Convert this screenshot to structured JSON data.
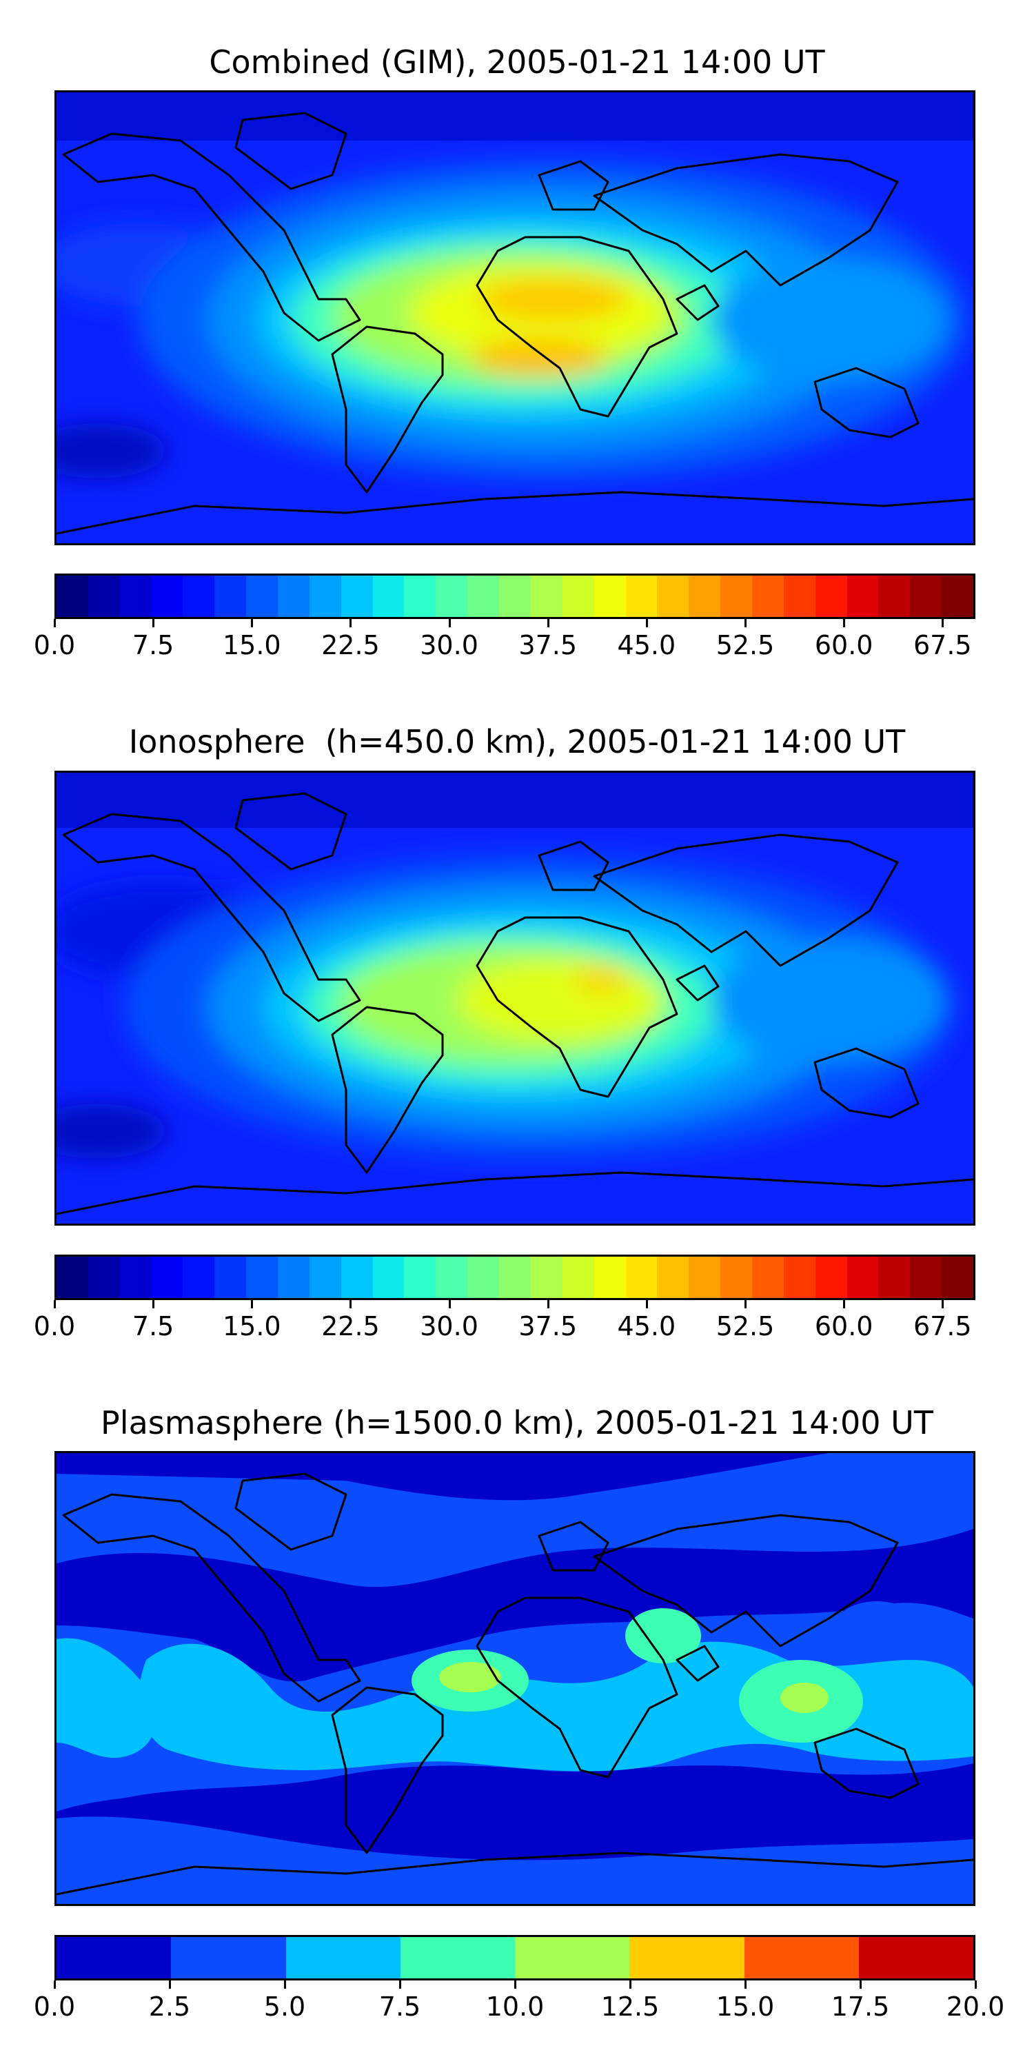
{
  "panels": [
    {
      "title": "Combined (GIM), 2005-01-21 14:00 UT",
      "colorbar": {
        "colors": [
          "#00007f",
          "#0000a8",
          "#0000d1",
          "#0000fa",
          "#0012ff",
          "#0036ff",
          "#005aff",
          "#007eff",
          "#00a2ff",
          "#00c6ff",
          "#0ceaec",
          "#2cffca",
          "#4dffaa",
          "#6dff8a",
          "#8dff6a",
          "#adff4a",
          "#ceff29",
          "#eeff09",
          "#ffe200",
          "#ffc000",
          "#ff9f00",
          "#ff7d00",
          "#ff5c00",
          "#ff3a00",
          "#ff1900",
          "#e10000",
          "#bd0000",
          "#990000",
          "#7f0000"
        ],
        "min": 0.0,
        "max": 70.0,
        "ticks": [
          "0.0",
          "7.5",
          "15.0",
          "22.5",
          "30.0",
          "37.5",
          "45.0",
          "52.5",
          "60.0",
          "67.5"
        ],
        "tick_values": [
          0.0,
          7.5,
          15.0,
          22.5,
          30.0,
          37.5,
          45.0,
          52.5,
          60.0,
          67.5
        ]
      }
    },
    {
      "title": "Ionosphere  (h=450.0 km), 2005-01-21 14:00 UT",
      "colorbar": {
        "colors": [
          "#00007f",
          "#0000a8",
          "#0000d1",
          "#0000fa",
          "#0012ff",
          "#0036ff",
          "#005aff",
          "#007eff",
          "#00a2ff",
          "#00c6ff",
          "#0ceaec",
          "#2cffca",
          "#4dffaa",
          "#6dff8a",
          "#8dff6a",
          "#adff4a",
          "#ceff29",
          "#eeff09",
          "#ffe200",
          "#ffc000",
          "#ff9f00",
          "#ff7d00",
          "#ff5c00",
          "#ff3a00",
          "#ff1900",
          "#e10000",
          "#bd0000",
          "#990000",
          "#7f0000"
        ],
        "min": 0.0,
        "max": 70.0,
        "ticks": [
          "0.0",
          "7.5",
          "15.0",
          "22.5",
          "30.0",
          "37.5",
          "45.0",
          "52.5",
          "60.0",
          "67.5"
        ],
        "tick_values": [
          0.0,
          7.5,
          15.0,
          22.5,
          30.0,
          37.5,
          45.0,
          52.5,
          60.0,
          67.5
        ]
      }
    },
    {
      "title": "Plasmasphere (h=1500.0 km), 2005-01-21 14:00 UT",
      "colorbar": {
        "colors": [
          "#0000c8",
          "#0c4cff",
          "#00c0ff",
          "#3cffb4",
          "#a6ff50",
          "#ffcc00",
          "#ff5500",
          "#c80000"
        ],
        "min": 0.0,
        "max": 20.0,
        "ticks": [
          "0.0",
          "2.5",
          "5.0",
          "7.5",
          "10.0",
          "12.5",
          "15.0",
          "17.5",
          "20.0"
        ],
        "tick_values": [
          0.0,
          2.5,
          5.0,
          7.5,
          10.0,
          12.5,
          15.0,
          17.5,
          20.0
        ]
      }
    }
  ]
}
